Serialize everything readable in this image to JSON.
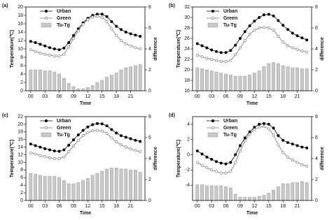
{
  "chart_data": [
    {
      "type": "line",
      "panel_label": "(a)",
      "xlabel": "Time",
      "ylabel": "Temperature(℃)",
      "y2label": "difference",
      "legend": "upper left",
      "x": [
        0,
        1,
        2,
        3,
        4,
        5,
        6,
        7,
        8,
        9,
        10,
        11,
        12,
        13,
        14,
        15,
        16,
        17,
        18,
        19,
        20,
        21,
        22,
        23
      ],
      "xlim": [
        -1,
        24
      ],
      "xticks": [
        {
          "value": 0,
          "label": "00"
        },
        {
          "value": 3,
          "label": "03"
        },
        {
          "value": 6,
          "label": "06"
        },
        {
          "value": 9,
          "label": "09"
        },
        12,
        15,
        18,
        21
      ],
      "ylim": [
        0,
        20
      ],
      "yticks": [
        0,
        2,
        4,
        6,
        8,
        10,
        12,
        14,
        16,
        18,
        20
      ],
      "y2lim": [
        0,
        8
      ],
      "y2ticks": [
        0,
        2,
        4,
        6,
        8
      ],
      "series": [
        {
          "name": "Urban",
          "kind": "line",
          "color": "#000000",
          "marker_fill": "#000000",
          "values": [
            11.8,
            11.5,
            11.1,
            10.7,
            10.3,
            10.0,
            9.8,
            10.2,
            11.5,
            13.2,
            14.8,
            16.2,
            17.3,
            18.0,
            18.3,
            18.3,
            17.7,
            16.5,
            15.4,
            14.6,
            14.0,
            13.6,
            13.3,
            13.0
          ]
        },
        {
          "name": "Green",
          "kind": "line",
          "color": "#777777",
          "marker_fill": "#ffffff",
          "values": [
            9.8,
            9.4,
            9.0,
            8.7,
            8.5,
            8.3,
            8.3,
            8.7,
            10.5,
            12.5,
            14.3,
            15.9,
            17.0,
            17.6,
            17.8,
            17.5,
            16.5,
            14.8,
            13.2,
            12.0,
            11.2,
            10.7,
            10.3,
            10.0
          ]
        },
        {
          "name": "Tu-Tg",
          "kind": "bar",
          "axis": "y2",
          "color": "#c8c8c8",
          "values": [
            2.0,
            2.0,
            2.0,
            1.9,
            1.9,
            1.8,
            1.6,
            1.2,
            0.7,
            0.4,
            0.2,
            0.2,
            0.3,
            0.5,
            0.8,
            1.0,
            1.3,
            1.5,
            1.7,
            2.0,
            2.2,
            2.3,
            2.4,
            2.5
          ]
        }
      ]
    },
    {
      "type": "line",
      "panel_label": "(b)",
      "xlabel": "Time",
      "ylabel": "Temperature(℃)",
      "y2label": "difference",
      "legend": "upper left",
      "x": [
        0,
        1,
        2,
        3,
        4,
        5,
        6,
        7,
        8,
        9,
        10,
        11,
        12,
        13,
        14,
        15,
        16,
        17,
        18,
        19,
        20,
        21,
        22,
        23
      ],
      "xlim": [
        -1,
        24
      ],
      "xticks": [
        {
          "value": 0,
          "label": "00"
        },
        {
          "value": 3,
          "label": "03"
        },
        {
          "value": 6,
          "label": "06"
        },
        {
          "value": 9,
          "label": "09"
        },
        12,
        15,
        18,
        21
      ],
      "ylim": [
        16,
        32
      ],
      "yticks": [
        16,
        18,
        20,
        22,
        24,
        26,
        28,
        30,
        32
      ],
      "y2lim": [
        0,
        8
      ],
      "y2ticks": [
        0,
        2,
        4,
        6,
        8
      ],
      "series": [
        {
          "name": "Urban",
          "kind": "line",
          "color": "#000000",
          "marker_fill": "#000000",
          "values": [
            25.0,
            24.6,
            24.2,
            23.8,
            23.5,
            23.3,
            23.3,
            23.7,
            24.7,
            26.0,
            27.3,
            28.4,
            29.3,
            30.0,
            30.5,
            30.6,
            30.3,
            29.4,
            28.5,
            27.7,
            27.0,
            26.5,
            26.1,
            25.7
          ]
        },
        {
          "name": "Green",
          "kind": "line",
          "color": "#777777",
          "marker_fill": "#ffffff",
          "values": [
            22.8,
            22.5,
            22.2,
            22.0,
            21.8,
            21.6,
            21.6,
            21.8,
            22.9,
            24.2,
            25.6,
            26.8,
            27.6,
            28.0,
            28.1,
            28.0,
            27.6,
            26.4,
            25.3,
            24.6,
            24.2,
            23.9,
            23.6,
            23.4
          ]
        },
        {
          "name": "Tu-Tg",
          "kind": "bar",
          "axis": "y2",
          "color": "#c8c8c8",
          "values": [
            2.2,
            2.1,
            2.0,
            1.9,
            1.8,
            1.7,
            1.6,
            1.5,
            1.4,
            1.4,
            1.4,
            1.5,
            1.7,
            1.9,
            2.3,
            2.6,
            2.7,
            2.6,
            2.4,
            2.3,
            2.2,
            2.2,
            2.1,
            2.1
          ]
        }
      ]
    },
    {
      "type": "line",
      "panel_label": "(c)",
      "xlabel": "Time",
      "ylabel": "Temperature(℃)",
      "y2label": "difference",
      "legend": "upper left",
      "x": [
        0,
        1,
        2,
        3,
        4,
        5,
        6,
        7,
        8,
        9,
        10,
        11,
        12,
        13,
        14,
        15,
        16,
        17,
        18,
        19,
        20,
        21,
        22,
        23
      ],
      "xlim": [
        -1,
        24
      ],
      "xticks": [
        {
          "value": 0,
          "label": "00"
        },
        {
          "value": 3,
          "label": "03"
        },
        {
          "value": 6,
          "label": "06"
        },
        {
          "value": 9,
          "label": "09"
        },
        12,
        15,
        18,
        21
      ],
      "ylim": [
        0,
        22
      ],
      "yticks": [
        0,
        2,
        4,
        6,
        8,
        10,
        12,
        14,
        16,
        18,
        20,
        22
      ],
      "y2lim": [
        0,
        8
      ],
      "y2ticks": [
        0,
        2,
        4,
        6,
        8
      ],
      "series": [
        {
          "name": "Urban",
          "kind": "line",
          "color": "#000000",
          "marker_fill": "#000000",
          "values": [
            14.8,
            14.4,
            14.0,
            13.6,
            13.3,
            13.0,
            12.9,
            13.3,
            14.5,
            15.9,
            17.2,
            18.4,
            19.3,
            19.9,
            20.2,
            20.1,
            19.6,
            18.6,
            17.7,
            17.0,
            16.6,
            16.2,
            15.8,
            15.5
          ]
        },
        {
          "name": "Green",
          "kind": "line",
          "color": "#777777",
          "marker_fill": "#ffffff",
          "values": [
            12.5,
            12.2,
            11.8,
            11.5,
            11.2,
            11.0,
            11.0,
            11.4,
            12.8,
            14.3,
            15.8,
            17.0,
            17.8,
            18.3,
            18.4,
            18.2,
            17.6,
            16.4,
            15.4,
            14.6,
            14.0,
            13.5,
            13.1,
            12.8
          ]
        },
        {
          "name": "Tu-Tg",
          "kind": "bar",
          "axis": "y2",
          "color": "#c8c8c8",
          "values": [
            2.6,
            2.5,
            2.4,
            2.3,
            2.3,
            2.3,
            2.2,
            1.9,
            1.6,
            1.6,
            1.7,
            1.9,
            2.1,
            2.4,
            2.6,
            2.8,
            3.0,
            3.1,
            3.1,
            3.0,
            3.0,
            2.9,
            2.9,
            2.7
          ]
        }
      ]
    },
    {
      "type": "line",
      "panel_label": "(d)",
      "xlabel": "Time",
      "ylabel": "Temperature(℃)",
      "y2label": "difference",
      "legend": "upper left",
      "x": [
        0,
        1,
        2,
        3,
        4,
        5,
        6,
        7,
        8,
        9,
        10,
        11,
        12,
        13,
        14,
        15,
        16,
        17,
        18,
        19,
        20,
        21,
        22,
        23
      ],
      "xlim": [
        -1,
        24
      ],
      "xticks": [
        {
          "value": 0,
          "label": "00"
        },
        {
          "value": 3,
          "label": "03"
        },
        {
          "value": 6,
          "label": "06"
        },
        {
          "value": 9,
          "label": "09"
        },
        12,
        15,
        18,
        21
      ],
      "ylim": [
        -6,
        5
      ],
      "yticks": [
        -4,
        -2,
        0,
        2,
        4
      ],
      "y2lim": [
        0,
        8
      ],
      "y2ticks": [
        0,
        2,
        4,
        6,
        8
      ],
      "series": [
        {
          "name": "Urban",
          "kind": "line",
          "color": "#000000",
          "marker_fill": "#000000",
          "values": [
            0.5,
            0.1,
            -0.3,
            -0.6,
            -0.9,
            -1.1,
            -1.2,
            -1.0,
            0.0,
            1.2,
            2.2,
            3.0,
            3.6,
            4.0,
            4.1,
            4.0,
            3.5,
            2.5,
            1.9,
            1.6,
            1.4,
            1.2,
            1.0,
            0.9
          ]
        },
        {
          "name": "Green",
          "kind": "line",
          "color": "#777777",
          "marker_fill": "#ffffff",
          "values": [
            -1.0,
            -1.4,
            -1.7,
            -2.0,
            -2.2,
            -2.4,
            -2.4,
            -2.2,
            -1.0,
            0.5,
            1.8,
            2.7,
            3.3,
            3.6,
            3.7,
            3.4,
            2.6,
            1.3,
            0.3,
            -0.3,
            -0.7,
            -1.0,
            -1.3,
            -1.5
          ]
        },
        {
          "name": "Tu-Tg",
          "kind": "bar",
          "axis": "y2",
          "color": "#c8c8c8",
          "values": [
            1.5,
            1.5,
            1.4,
            1.4,
            1.4,
            1.4,
            1.3,
            1.2,
            0.6,
            0.3,
            0.3,
            0.3,
            0.3,
            0.4,
            0.5,
            0.7,
            1.0,
            1.3,
            1.6,
            1.6,
            1.7,
            1.7,
            1.8,
            1.7
          ]
        }
      ]
    }
  ]
}
